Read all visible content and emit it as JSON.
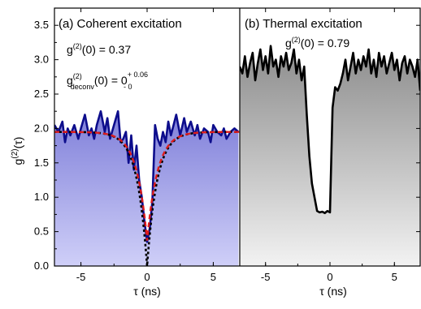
{
  "chart_data": {
    "type": "line",
    "y_label": "g(2)(τ)",
    "ylim": [
      0,
      3.75
    ],
    "yticks": [
      "0.0",
      "0.5",
      "1.0",
      "1.5",
      "2.0",
      "2.5",
      "3.0",
      "3.5"
    ],
    "shared_y_axis": true,
    "panels": [
      {
        "id": "a",
        "title": "(a) Coherent excitation",
        "x_label": "τ (ns)",
        "xlim": [
          -7,
          7
        ],
        "xticks": [
          "-5",
          "0",
          "5"
        ],
        "annotation_1": "g(2)(0) = 0.37",
        "annotation_2": "g(2)deconv(0) = 0 +0.06 −0",
        "fill_colors": [
          "#eaeaf9",
          "#7f7fd9"
        ],
        "series": [
          {
            "kind": "measured",
            "color": "#0d0d8c",
            "x": [
              -7,
              -6.7,
              -6.4,
              -6.2,
              -6.0,
              -5.8,
              -5.5,
              -5.2,
              -5.0,
              -4.7,
              -4.4,
              -4.2,
              -4.0,
              -3.8,
              -3.5,
              -3.2,
              -3.0,
              -2.8,
              -2.5,
              -2.2,
              -2.0,
              -1.8,
              -1.6,
              -1.4,
              -1.2,
              -1.0,
              -0.8,
              -0.6,
              -0.4,
              -0.2,
              0,
              0.2,
              0.4,
              0.6,
              0.8,
              1.0,
              1.2,
              1.4,
              1.6,
              1.8,
              2.0,
              2.2,
              2.5,
              2.8,
              3.0,
              3.3,
              3.6,
              3.8,
              4.0,
              4.3,
              4.6,
              4.8,
              5.0,
              5.3,
              5.6,
              5.8,
              6.0,
              6.3,
              6.6,
              6.9
            ],
            "y": [
              2.05,
              1.95,
              2.1,
              1.8,
              2.0,
              1.9,
              2.05,
              1.85,
              2.0,
              2.2,
              1.9,
              2.0,
              1.85,
              2.05,
              2.25,
              1.95,
              2.15,
              1.85,
              2.05,
              2.25,
              1.8,
              1.85,
              1.95,
              1.5,
              1.9,
              1.4,
              1.75,
              1.25,
              1.0,
              0.65,
              0.35,
              0.55,
              0.95,
              2.05,
              1.85,
              1.75,
              1.95,
              1.8,
              2.1,
              1.9,
              2.05,
              2.2,
              1.9,
              2.15,
              1.95,
              2.1,
              1.9,
              2.05,
              1.85,
              2.0,
              1.95,
              1.8,
              2.05,
              1.95,
              1.9,
              2.0,
              1.85,
              1.95,
              2.0,
              1.95
            ]
          },
          {
            "kind": "deconvolved",
            "color": "#000000",
            "amp": 1.95,
            "tau": 0.75
          },
          {
            "kind": "fit",
            "color": "#dd1c1c",
            "amp": 1.95,
            "depth": 0.81,
            "tau": 0.78
          }
        ]
      },
      {
        "id": "b",
        "title": "(b) Thermal excitation",
        "x_label": "τ (ns)",
        "xlim": [
          -7,
          7
        ],
        "xticks": [
          "-5",
          "0",
          "5"
        ],
        "annotation_1": "g(2)(0) = 0.79",
        "fill_colors": [
          "#f4f4f4",
          "#8c8c8c"
        ],
        "series": [
          {
            "kind": "measured",
            "color": "#000000",
            "x": [
              -7,
              -6.8,
              -6.6,
              -6.4,
              -6.2,
              -6.0,
              -5.8,
              -5.6,
              -5.4,
              -5.2,
              -5.0,
              -4.8,
              -4.6,
              -4.4,
              -4.2,
              -4.0,
              -3.8,
              -3.6,
              -3.4,
              -3.2,
              -3.0,
              -2.8,
              -2.6,
              -2.4,
              -2.2,
              -2.0,
              -1.8,
              -1.6,
              -1.4,
              -1.2,
              -1.0,
              -0.8,
              -0.6,
              -0.4,
              -0.2,
              0,
              0.2,
              0.4,
              0.6,
              0.8,
              1.0,
              1.2,
              1.4,
              1.6,
              1.8,
              2.0,
              2.2,
              2.4,
              2.6,
              2.8,
              3.0,
              3.2,
              3.4,
              3.6,
              3.8,
              4.0,
              4.2,
              4.4,
              4.6,
              4.8,
              5.0,
              5.2,
              5.4,
              5.6,
              5.8,
              6.0,
              6.2,
              6.4,
              6.6,
              6.8,
              7.0
            ],
            "y": [
              2.9,
              2.8,
              3.05,
              2.75,
              2.95,
              3.1,
              2.7,
              2.95,
              3.15,
              2.85,
              3.05,
              2.8,
              3.2,
              2.9,
              3.0,
              2.75,
              3.05,
              2.9,
              3.1,
              2.85,
              2.95,
              3.15,
              2.8,
              3.0,
              2.7,
              2.9,
              2.2,
              1.6,
              1.2,
              1.0,
              0.8,
              0.78,
              0.79,
              0.77,
              0.8,
              0.78,
              2.3,
              2.6,
              2.55,
              2.65,
              2.8,
              3.0,
              2.7,
              2.9,
              3.1,
              2.8,
              3.0,
              2.85,
              3.05,
              2.9,
              3.15,
              2.8,
              3.0,
              2.75,
              3.1,
              2.9,
              3.05,
              2.8,
              2.95,
              3.1,
              2.85,
              3.0,
              2.7,
              2.95,
              3.05,
              2.8,
              3.0,
              2.9,
              2.75,
              3.0,
              2.55
            ]
          }
        ]
      }
    ]
  }
}
